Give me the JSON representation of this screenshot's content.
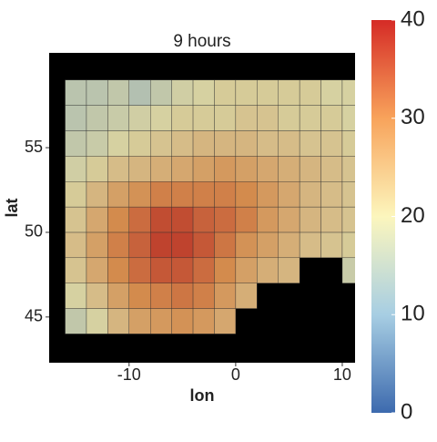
{
  "chart_data": {
    "type": "heatmap",
    "title": "9  hours",
    "x_label": "lon",
    "y_label": "lat",
    "xbins": [
      -16,
      -14,
      -12,
      -10,
      -8,
      -6,
      -4,
      -2,
      0,
      2,
      4,
      6,
      8,
      10,
      12
    ],
    "ybins": [
      44,
      45.5,
      47,
      48.5,
      50,
      51.5,
      53,
      54.5,
      56,
      57.5,
      59
    ],
    "values": [
      [
        17,
        20,
        24,
        27,
        28,
        29,
        28,
        26,
        null,
        null,
        null,
        null,
        null,
        null
      ],
      [
        20,
        23,
        27,
        30,
        31,
        32,
        31,
        28,
        25,
        null,
        null,
        null,
        null,
        null
      ],
      [
        22,
        26,
        30,
        33,
        35,
        35,
        33,
        30,
        27,
        25,
        24,
        null,
        null,
        18
      ],
      [
        23,
        27,
        31,
        34,
        37,
        37,
        35,
        32,
        29,
        27,
        25,
        23,
        22,
        21
      ],
      [
        22,
        26,
        30,
        33,
        36,
        36,
        34,
        33,
        31,
        28,
        26,
        24,
        23,
        22
      ],
      [
        21,
        24,
        27,
        29,
        31,
        31,
        31,
        31,
        30,
        28,
        26,
        24,
        23,
        22
      ],
      [
        19,
        21,
        23,
        24,
        25,
        26,
        27,
        28,
        27,
        26,
        25,
        24,
        23,
        22
      ],
      [
        17,
        18,
        20,
        21,
        22,
        23,
        24,
        24,
        24,
        23,
        23,
        22,
        22,
        21
      ],
      [
        16,
        17,
        18,
        19,
        20,
        21,
        21,
        21,
        22,
        22,
        21,
        21,
        21,
        20
      ],
      [
        16,
        16,
        17,
        15,
        17,
        19,
        20,
        21,
        21,
        21,
        21,
        21,
        20,
        20
      ]
    ],
    "xlim": [
      -17.5,
      11.2
    ],
    "ylim": [
      42.3,
      60.6
    ],
    "xticks": [
      -10,
      0,
      10
    ],
    "yticks": [
      45,
      50,
      55
    ],
    "clim": [
      0,
      40
    ],
    "cticks": [
      0,
      10,
      20,
      30,
      40
    ],
    "colorscale": [
      "#3d6aae",
      "#a7cee3",
      "#fcf6bd",
      "#f8a35b",
      "#d52b26"
    ]
  }
}
